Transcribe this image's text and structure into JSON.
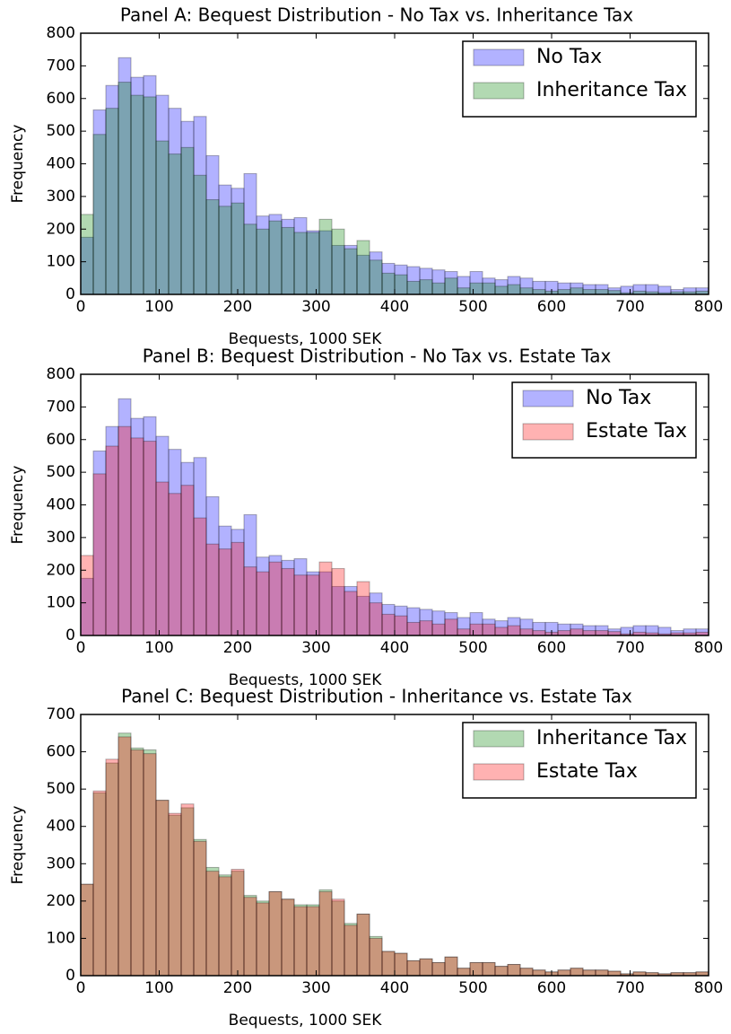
{
  "chart_data": [
    {
      "type": "histogram",
      "title": "Panel A: Bequest Distribution - No Tax vs. Inheritance Tax",
      "xlabel": "Bequests, 1000 SEK",
      "ylabel": "Frequency",
      "bins": [
        0,
        16,
        32,
        48,
        64,
        80,
        96,
        112,
        128,
        144,
        160,
        176,
        192,
        208,
        224,
        240,
        256,
        272,
        288,
        304,
        320,
        336,
        352,
        368,
        384,
        400,
        416,
        432,
        448,
        464,
        480,
        496,
        512,
        528,
        544,
        560,
        576,
        592,
        608,
        624,
        640,
        656,
        672,
        688,
        704,
        720,
        736,
        752,
        768,
        784,
        800
      ],
      "xlim": [
        0,
        800
      ],
      "xticks": [
        0,
        100,
        200,
        300,
        400,
        500,
        600,
        700,
        800
      ],
      "ylim": [
        0,
        800
      ],
      "yticks": [
        0,
        100,
        200,
        300,
        400,
        500,
        600,
        700,
        800
      ],
      "alpha": 0.3,
      "legend": "upper right",
      "series": [
        {
          "name": "No Tax",
          "color": "#0000ff",
          "values": [
            175,
            565,
            640,
            725,
            665,
            670,
            610,
            570,
            530,
            545,
            425,
            335,
            325,
            370,
            240,
            245,
            230,
            235,
            195,
            195,
            150,
            150,
            120,
            130,
            95,
            90,
            85,
            80,
            75,
            70,
            55,
            70,
            50,
            45,
            55,
            50,
            40,
            40,
            35,
            35,
            30,
            30,
            20,
            25,
            30,
            30,
            25,
            15,
            20,
            20
          ]
        },
        {
          "name": "Inheritance Tax",
          "color": "#008000",
          "values": [
            245,
            490,
            570,
            650,
            610,
            605,
            470,
            430,
            450,
            365,
            290,
            270,
            280,
            215,
            200,
            225,
            205,
            190,
            190,
            230,
            200,
            140,
            165,
            105,
            65,
            60,
            40,
            45,
            35,
            50,
            20,
            35,
            35,
            25,
            30,
            20,
            15,
            10,
            15,
            20,
            15,
            15,
            12,
            5,
            10,
            8,
            5,
            8,
            8,
            10
          ]
        }
      ]
    },
    {
      "type": "histogram",
      "title": "Panel B: Bequest Distribution - No Tax vs. Estate Tax",
      "xlabel": "Bequests, 1000 SEK",
      "ylabel": "Frequency",
      "bins": [
        0,
        16,
        32,
        48,
        64,
        80,
        96,
        112,
        128,
        144,
        160,
        176,
        192,
        208,
        224,
        240,
        256,
        272,
        288,
        304,
        320,
        336,
        352,
        368,
        384,
        400,
        416,
        432,
        448,
        464,
        480,
        496,
        512,
        528,
        544,
        560,
        576,
        592,
        608,
        624,
        640,
        656,
        672,
        688,
        704,
        720,
        736,
        752,
        768,
        784,
        800
      ],
      "xlim": [
        0,
        800
      ],
      "xticks": [
        0,
        100,
        200,
        300,
        400,
        500,
        600,
        700,
        800
      ],
      "ylim": [
        0,
        800
      ],
      "yticks": [
        0,
        100,
        200,
        300,
        400,
        500,
        600,
        700,
        800
      ],
      "alpha": 0.3,
      "legend": "upper right",
      "series": [
        {
          "name": "No Tax",
          "color": "#0000ff",
          "values": [
            175,
            565,
            640,
            725,
            665,
            670,
            610,
            570,
            530,
            545,
            425,
            335,
            325,
            370,
            240,
            245,
            230,
            235,
            195,
            195,
            150,
            150,
            120,
            130,
            95,
            90,
            85,
            80,
            75,
            70,
            55,
            70,
            50,
            45,
            55,
            50,
            40,
            40,
            35,
            35,
            30,
            30,
            20,
            25,
            30,
            30,
            25,
            15,
            20,
            20
          ]
        },
        {
          "name": "Estate Tax",
          "color": "#ff0000",
          "values": [
            245,
            495,
            580,
            640,
            605,
            595,
            470,
            435,
            460,
            360,
            280,
            265,
            285,
            210,
            195,
            225,
            205,
            185,
            185,
            225,
            205,
            135,
            165,
            100,
            65,
            60,
            40,
            45,
            35,
            50,
            20,
            35,
            35,
            25,
            30,
            20,
            15,
            10,
            15,
            20,
            15,
            15,
            12,
            5,
            10,
            8,
            5,
            8,
            8,
            10
          ]
        }
      ]
    },
    {
      "type": "histogram",
      "title": "Panel C: Bequest Distribution - Inheritance vs. Estate Tax",
      "xlabel": "Bequests, 1000 SEK",
      "ylabel": "Frequency",
      "bins": [
        0,
        16,
        32,
        48,
        64,
        80,
        96,
        112,
        128,
        144,
        160,
        176,
        192,
        208,
        224,
        240,
        256,
        272,
        288,
        304,
        320,
        336,
        352,
        368,
        384,
        400,
        416,
        432,
        448,
        464,
        480,
        496,
        512,
        528,
        544,
        560,
        576,
        592,
        608,
        624,
        640,
        656,
        672,
        688,
        704,
        720,
        736,
        752,
        768,
        784,
        800
      ],
      "xlim": [
        0,
        800
      ],
      "xticks": [
        0,
        100,
        200,
        300,
        400,
        500,
        600,
        700,
        800
      ],
      "ylim": [
        0,
        700
      ],
      "yticks": [
        0,
        100,
        200,
        300,
        400,
        500,
        600,
        700
      ],
      "alpha": 0.3,
      "legend": "upper right",
      "series": [
        {
          "name": "Inheritance Tax",
          "color": "#008000",
          "values": [
            245,
            490,
            570,
            650,
            610,
            605,
            470,
            430,
            450,
            365,
            290,
            270,
            280,
            215,
            200,
            225,
            205,
            190,
            190,
            230,
            200,
            140,
            165,
            105,
            65,
            60,
            40,
            45,
            35,
            50,
            20,
            35,
            35,
            25,
            30,
            20,
            15,
            10,
            15,
            20,
            15,
            15,
            12,
            5,
            10,
            8,
            5,
            8,
            8,
            10
          ]
        },
        {
          "name": "Estate Tax",
          "color": "#ff0000",
          "values": [
            245,
            495,
            580,
            640,
            605,
            595,
            470,
            435,
            460,
            360,
            280,
            265,
            285,
            210,
            195,
            225,
            205,
            185,
            185,
            225,
            205,
            135,
            165,
            100,
            65,
            60,
            40,
            45,
            35,
            50,
            20,
            35,
            35,
            25,
            30,
            20,
            15,
            10,
            15,
            20,
            15,
            15,
            12,
            5,
            10,
            8,
            5,
            8,
            8,
            10
          ]
        }
      ]
    }
  ]
}
